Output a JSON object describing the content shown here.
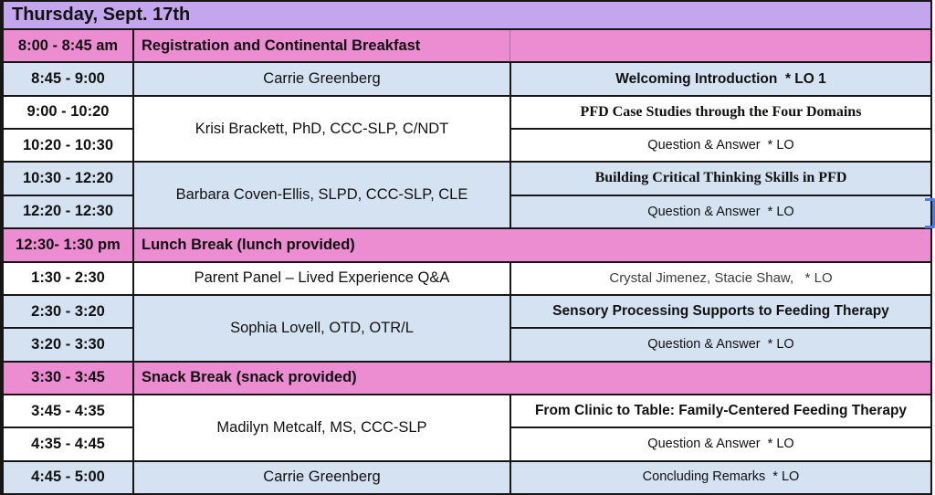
{
  "title": "Thursday, Sept. 17th",
  "colors": {
    "header_purple": "#c3a6ee",
    "break_pink": "#ec8cd1",
    "row_blue": "#d4e2f2",
    "row_white": "#ffffff",
    "grid_black": "#161616",
    "selection_blue": "#4f7be4",
    "secondary_text_gray": "#3d3d3d"
  },
  "rows": [
    {
      "time": "8:00 - 8:45 am",
      "label": "Registration and Continental Breakfast"
    },
    {
      "time": "8:45 - 9:00",
      "speaker": "Carrie Greenberg",
      "topic": "Welcoming Introduction  * LO 1"
    },
    {
      "time": "9:00 - 10:20",
      "topic": "PFD Case Studies through the Four Domains"
    },
    {
      "time": "10:20 - 10:30",
      "topic": "Question & Answer  * LO"
    },
    {
      "time": "10:30 - 12:20",
      "topic": "Building Critical Thinking Skills in PFD"
    },
    {
      "time": "12:20 - 12:30",
      "topic": "Question & Answer  * LO"
    },
    {
      "time": "12:30- 1:30 pm",
      "label": "Lunch Break (lunch provided)"
    },
    {
      "time": "1:30 - 2:30",
      "speaker": "Parent Panel – Lived Experience Q&A",
      "topic": "Crystal Jimenez, Stacie Shaw,   * LO"
    },
    {
      "time": "2:30 - 3:20",
      "topic": "Sensory Processing Supports to Feeding Therapy"
    },
    {
      "time": "3:20 - 3:30",
      "topic": "Question & Answer  * LO"
    },
    {
      "time": "3:30 - 3:45",
      "label": "Snack Break (snack provided)"
    },
    {
      "time": "3:45 - 4:35",
      "topic": "From Clinic to Table: Family-Centered Feeding Therapy"
    },
    {
      "time": "4:35 - 4:45",
      "topic": "Question & Answer  * LO"
    },
    {
      "time": "4:45 - 5:00",
      "speaker": "Carrie Greenberg",
      "topic": "Concluding Remarks  * LO"
    }
  ],
  "speakers": {
    "krisi": "Krisi Brackett, PhD, CCC-SLP, C/NDT",
    "barbara": "Barbara Coven-Ellis, SLPD, CCC-SLP, CLE",
    "sophia": "Sophia Lovell, OTD, OTR/L",
    "madilyn": "Madilyn Metcalf, MS, CCC-SLP"
  }
}
